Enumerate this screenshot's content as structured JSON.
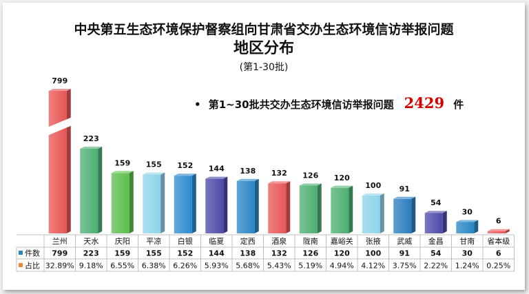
{
  "chart_data": {
    "type": "bar",
    "title": "中央第五生态环境保护督察组向甘肃省交办生态环境信访举报问题",
    "subtitle": "地区分布",
    "batch": "(第1-30批)",
    "note": {
      "bullet": "•",
      "prefix": "第1~30批共交办生态环境信访举报问题",
      "total": "2429",
      "unit": "件"
    },
    "categories": [
      "兰州",
      "天水",
      "庆阳",
      "平凉",
      "白银",
      "临夏",
      "定西",
      "酒泉",
      "陇南",
      "嘉峪关",
      "张掖",
      "武威",
      "金昌",
      "甘南",
      "省本级"
    ],
    "values": [
      799,
      223,
      159,
      155,
      152,
      144,
      138,
      132,
      126,
      120,
      100,
      91,
      54,
      30,
      6
    ],
    "percent_labels": [
      "32.89%",
      "9.18%",
      "6.55%",
      "6.38%",
      "6.26%",
      "5.93%",
      "5.68%",
      "5.43%",
      "5.19%",
      "4.94%",
      "4.12%",
      "3.75%",
      "2.22%",
      "1.24%",
      "0.25%"
    ],
    "row_labels": {
      "count": "件数",
      "share": "占比"
    },
    "bar_colors": [
      "#e85555",
      "#4caf72",
      "#5cbf4c",
      "#8fd3e8",
      "#2e8bd0",
      "#4e4aa8",
      "#2a86c4",
      "#e85555",
      "#4caf72",
      "#4caf72",
      "#8fd3e8",
      "#2a7ec0",
      "#4e4aa8",
      "#2a86c4",
      "#e85555"
    ],
    "row_marker_colors": {
      "count": "#2a86c4",
      "share": "#ef8a2a"
    },
    "broken_axis_category": "兰州"
  }
}
